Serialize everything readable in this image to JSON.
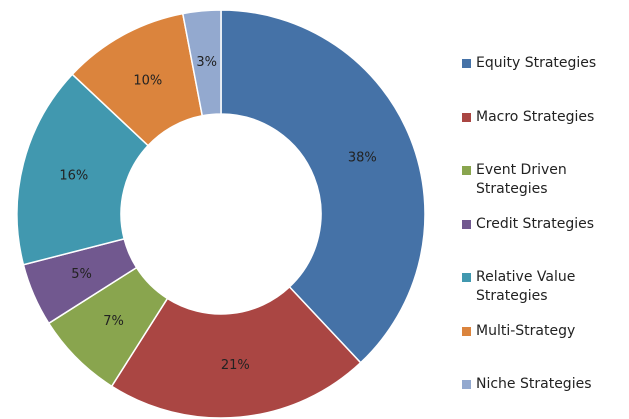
{
  "chart_data": {
    "type": "donut",
    "categories": [
      "Equity Strategies",
      "Macro Strategies",
      "Event Driven Strategies",
      "Credit Strategies",
      "Relative Value Strategies",
      "Multi-Strategy",
      "Niche Strategies"
    ],
    "values": [
      38,
      21,
      7,
      5,
      16,
      10,
      3
    ],
    "value_labels": [
      "38%",
      "21%",
      "7%",
      "5%",
      "16%",
      "10%",
      "3%"
    ],
    "colors": [
      "#4572a7",
      "#aa4643",
      "#89a54e",
      "#71588f",
      "#4198af",
      "#db843d",
      "#93a9cf"
    ],
    "legend": "right"
  }
}
